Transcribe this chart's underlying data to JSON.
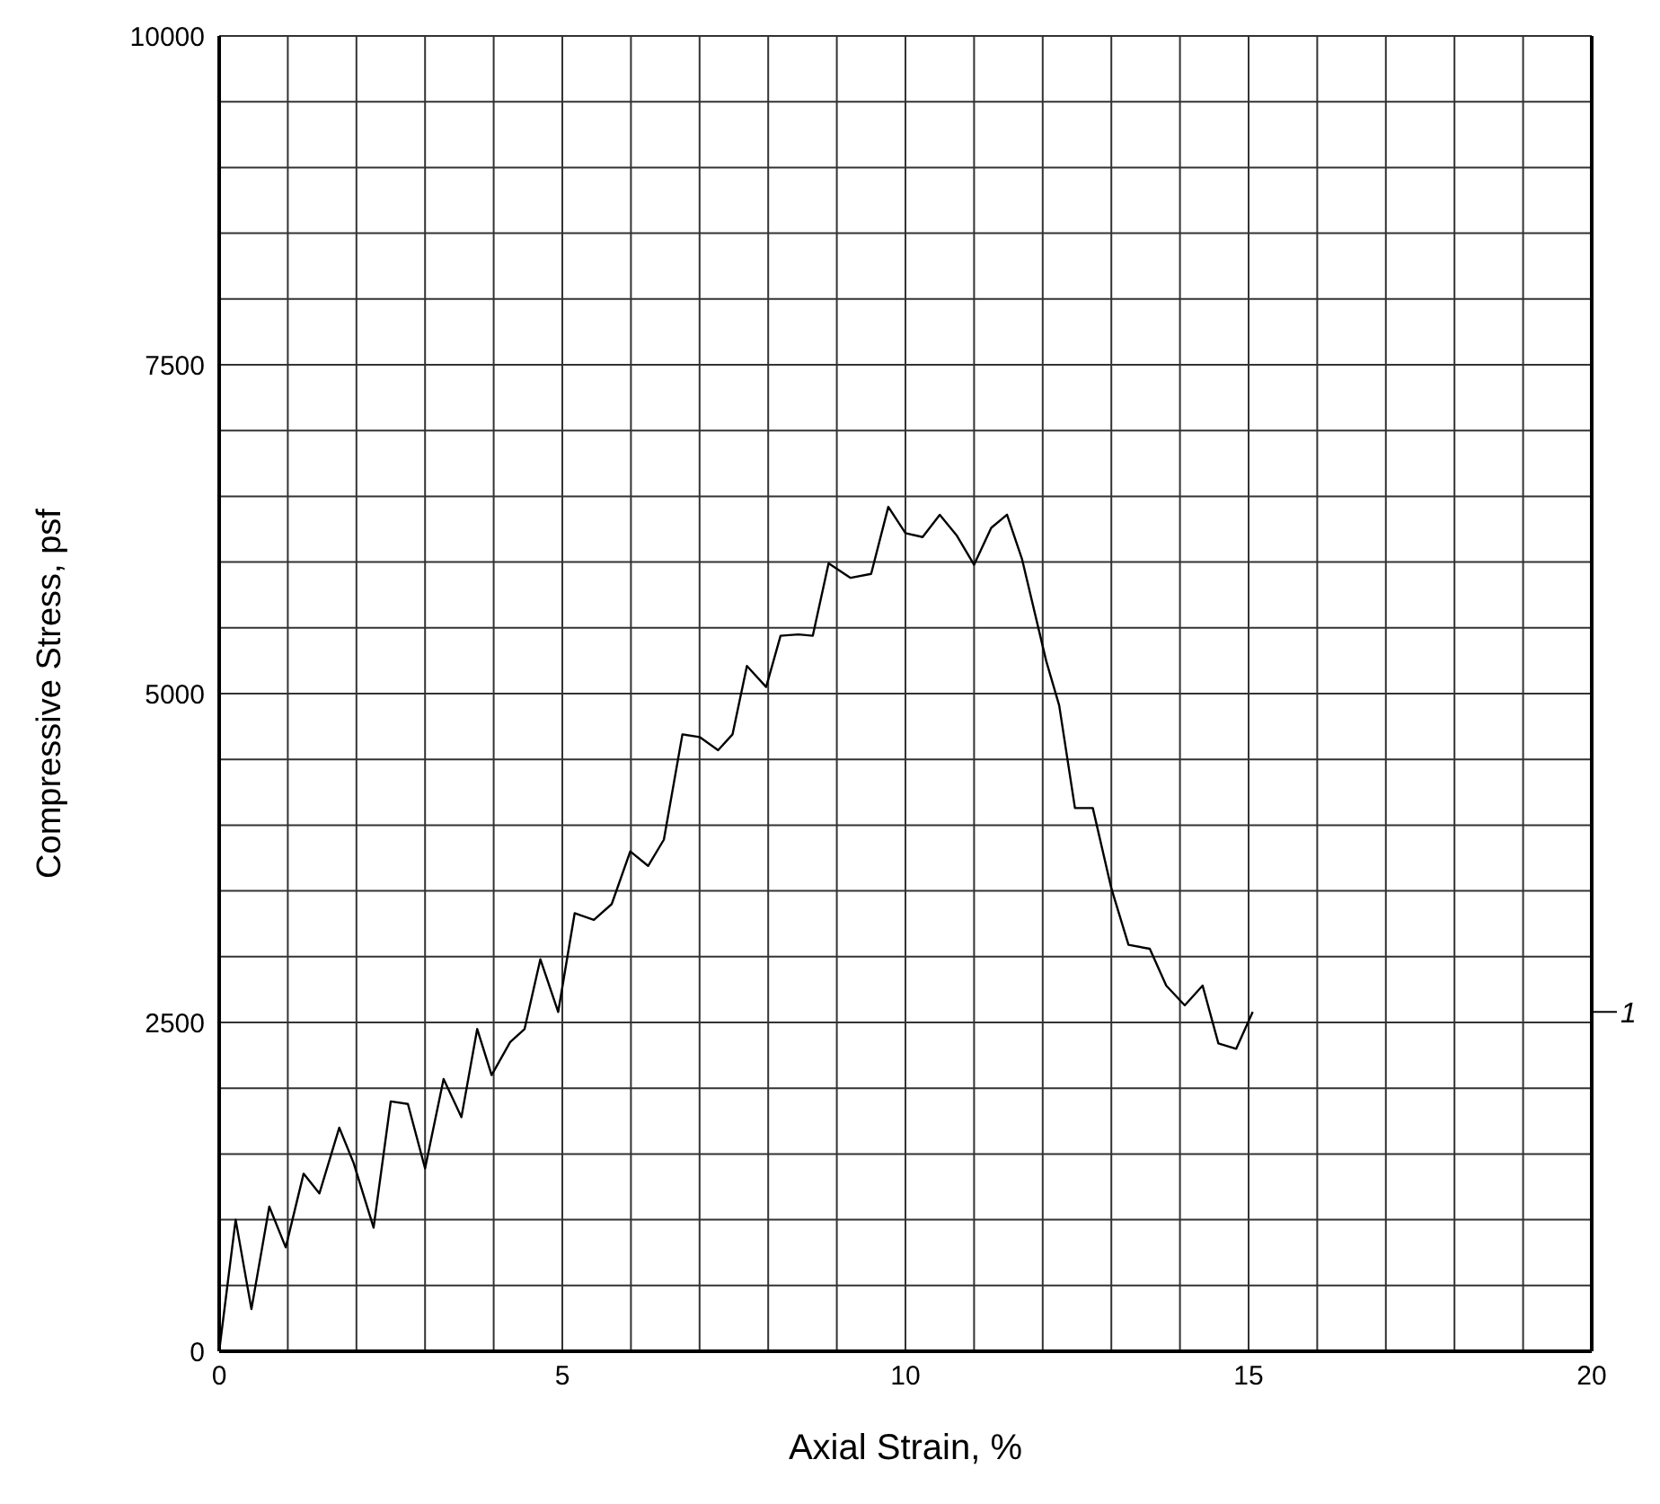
{
  "chart_data": {
    "type": "line",
    "xlabel": "Axial Strain, %",
    "ylabel": "Compressive Stress, psf",
    "xlim": [
      0,
      20
    ],
    "ylim": [
      0,
      10000
    ],
    "xticks": [
      0,
      {
        "value": 1,
        "label": null
      },
      {
        "value": 2,
        "label": null
      },
      {
        "value": 3,
        "label": null
      },
      {
        "value": 4,
        "label": null
      },
      5,
      {
        "value": 6,
        "label": null
      },
      {
        "value": 7,
        "label": null
      },
      {
        "value": 8,
        "label": null
      },
      {
        "value": 9,
        "label": null
      },
      10,
      {
        "value": 11,
        "label": null
      },
      {
        "value": 12,
        "label": null
      },
      {
        "value": 13,
        "label": null
      },
      {
        "value": 14,
        "label": null
      },
      15,
      {
        "value": 16,
        "label": null
      },
      {
        "value": 17,
        "label": null
      },
      {
        "value": 18,
        "label": null
      },
      {
        "value": 19,
        "label": null
      },
      20
    ],
    "yticks": [
      0,
      {
        "value": 500,
        "label": null
      },
      {
        "value": 1000,
        "label": null
      },
      {
        "value": 1500,
        "label": null
      },
      {
        "value": 2000,
        "label": null
      },
      2500,
      {
        "value": 3000,
        "label": null
      },
      {
        "value": 3500,
        "label": null
      },
      {
        "value": 4000,
        "label": null
      },
      {
        "value": 4500,
        "label": null
      },
      5000,
      {
        "value": 5500,
        "label": null
      },
      {
        "value": 6000,
        "label": null
      },
      {
        "value": 6500,
        "label": null
      },
      {
        "value": 7000,
        "label": null
      },
      7500,
      {
        "value": 8000,
        "label": null
      },
      {
        "value": 8500,
        "label": null
      },
      {
        "value": 9000,
        "label": null
      },
      {
        "value": 9500,
        "label": null
      },
      10000
    ],
    "grid": true,
    "marker": "none",
    "line_style": "solid",
    "annotations": [
      "1"
    ],
    "x": [
      0,
      0.24,
      0.47,
      0.73,
      0.97,
      1.23,
      1.46,
      1.75,
      1.96,
      2.25,
      2.5,
      2.75,
      3.0,
      3.27,
      3.53,
      3.76,
      3.97,
      4.24,
      4.45,
      4.68,
      4.94,
      5.18,
      5.46,
      5.72,
      5.99,
      6.25,
      6.48,
      6.75,
      7.0,
      7.27,
      7.48,
      7.69,
      7.97,
      8.18,
      8.44,
      8.65,
      8.88,
      9.2,
      9.5,
      9.75,
      10.0,
      10.25,
      10.5,
      10.75,
      11.0,
      11.25,
      11.48,
      11.7,
      12.05,
      12.24,
      12.47,
      12.73,
      13.0,
      13.25,
      13.56,
      13.8,
      14.07,
      14.33,
      14.56,
      14.82,
      15.06
    ],
    "series": [
      {
        "color": "#000000",
        "values": [
          0,
          1000,
          320,
          1100,
          790,
          1350,
          1200,
          1700,
          1430,
          940,
          1900,
          1880,
          1390,
          2070,
          1780,
          2450,
          2100,
          2350,
          2450,
          2980,
          2580,
          3330,
          3280,
          3400,
          3800,
          3690,
          3890,
          4690,
          4670,
          4570,
          4690,
          5210,
          5050,
          5440,
          5450,
          5440,
          5990,
          5880,
          5910,
          6420,
          6220,
          6190,
          6360,
          6200,
          5980,
          6260,
          6360,
          6020,
          5250,
          4910,
          4130,
          4130,
          3520,
          3090,
          3060,
          2780,
          2630,
          2780,
          2340,
          2300,
          2580
        ]
      }
    ]
  }
}
